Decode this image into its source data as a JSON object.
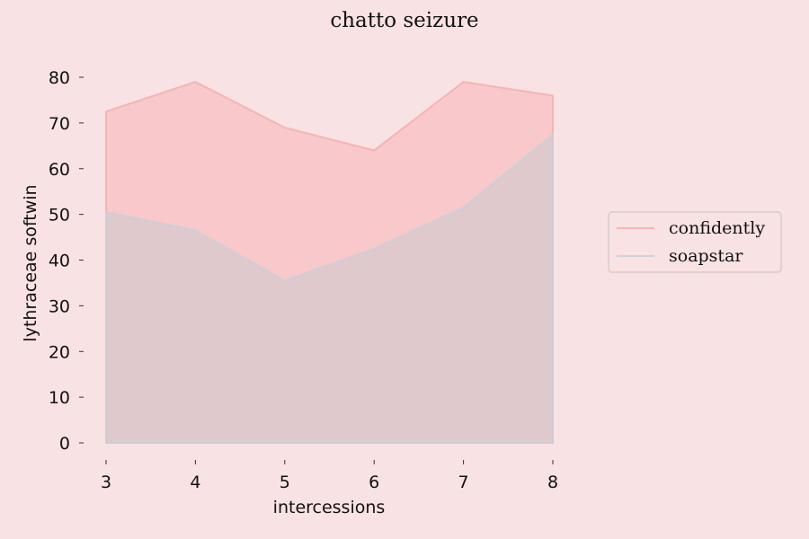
{
  "chart_data": {
    "type": "area",
    "title": "chatto seizure",
    "xlabel": "intercessions",
    "ylabel": "lythraceae softwin",
    "x": [
      3,
      4,
      5,
      6,
      7,
      8
    ],
    "xlim": [
      3,
      8
    ],
    "ylim": [
      0,
      80
    ],
    "yticks": [
      0,
      10,
      20,
      30,
      40,
      50,
      60,
      70,
      80
    ],
    "grid": false,
    "legend_position": "right",
    "series": [
      {
        "name": "confidently",
        "values": [
          72.5,
          79,
          69,
          64,
          79,
          76
        ],
        "color": "#f4a9ab",
        "fill": "#f7c5c7"
      },
      {
        "name": "soapstar",
        "values": [
          50.5,
          46.5,
          35.5,
          42.5,
          51.5,
          67.5
        ],
        "color": "#c5d0d9",
        "fill": "#dcc9cd"
      }
    ]
  }
}
